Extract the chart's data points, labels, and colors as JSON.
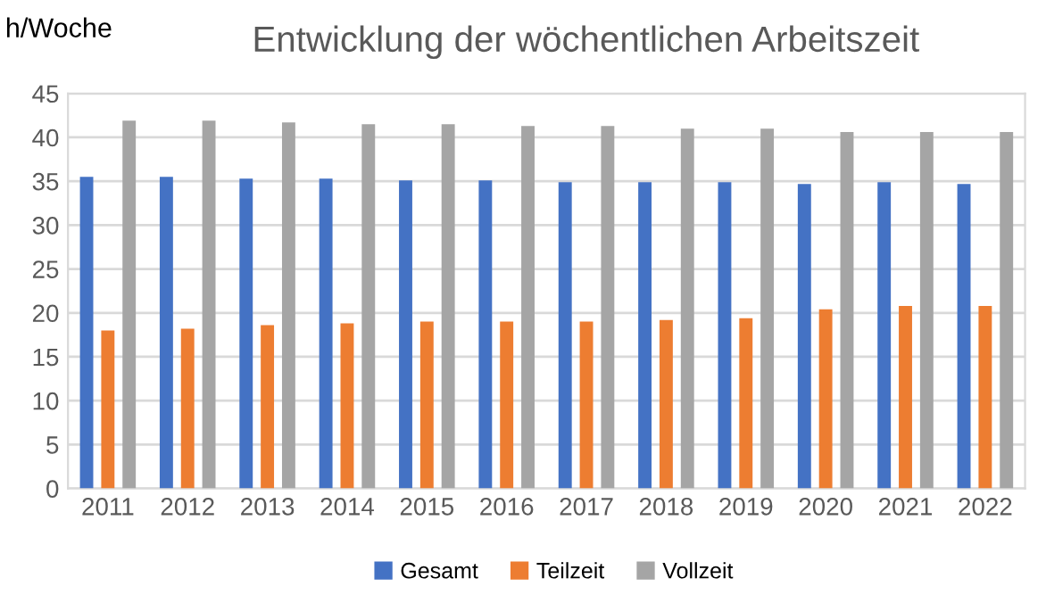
{
  "chart_data": {
    "type": "bar",
    "title": "Entwicklung der wöchentlichen Arbeitszeit",
    "ylabel": "h/Woche",
    "categories": [
      "2011",
      "2012",
      "2013",
      "2014",
      "2015",
      "2016",
      "2017",
      "2018",
      "2019",
      "2020",
      "2021",
      "2022"
    ],
    "series": [
      {
        "name": "Gesamt",
        "color": "#4472c4",
        "values": [
          35.5,
          35.5,
          35.3,
          35.3,
          35.1,
          35.1,
          34.9,
          34.9,
          34.9,
          34.7,
          34.9,
          34.7
        ]
      },
      {
        "name": "Teilzeit",
        "color": "#ed7d31",
        "values": [
          18.0,
          18.2,
          18.6,
          18.8,
          19.0,
          19.0,
          19.0,
          19.2,
          19.4,
          20.4,
          20.8,
          20.8
        ]
      },
      {
        "name": "Vollzeit",
        "color": "#a5a5a5",
        "values": [
          41.9,
          41.9,
          41.7,
          41.5,
          41.5,
          41.3,
          41.3,
          41.0,
          41.0,
          40.6,
          40.6,
          40.6
        ]
      }
    ],
    "ylim": [
      0,
      45
    ],
    "yticks": [
      0,
      5,
      10,
      15,
      20,
      25,
      30,
      35,
      40,
      45
    ],
    "grid": "y",
    "legend": "bottom"
  }
}
